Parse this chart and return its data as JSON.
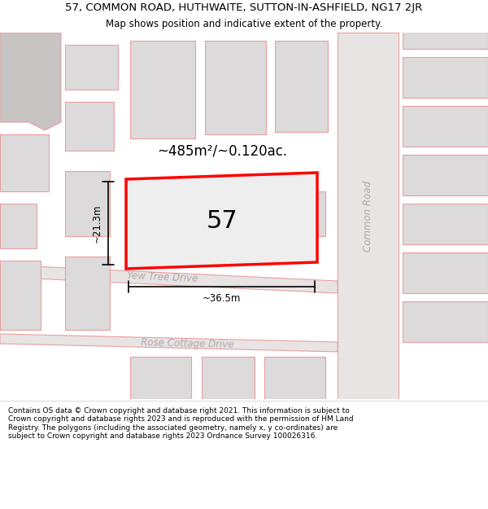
{
  "title_line1": "57, COMMON ROAD, HUTHWAITE, SUTTON-IN-ASHFIELD, NG17 2JR",
  "title_line2": "Map shows position and indicative extent of the property.",
  "footer_text": "Contains OS data © Crown copyright and database right 2021. This information is subject to Crown copyright and database rights 2023 and is reproduced with the permission of HM Land Registry. The polygons (including the associated geometry, namely x, y co-ordinates) are subject to Crown copyright and database rights 2023 Ordnance Survey 100026316.",
  "area_text": "~485m²/~0.120ac.",
  "number_label": "57",
  "dim_width": "~36.5m",
  "dim_height": "~21.3m",
  "road_label_cr": "Common Road",
  "road_label_yt": "Yew Tree Drive",
  "road_label_rc": "Rose Cottage Drive",
  "bg_color": "#f2f0f0",
  "road_fill": "#e8e4e4",
  "road_stroke": "#e8a0a0",
  "plot_fill": "#eeeeee",
  "plot_stroke": "#ff0000",
  "building_fill": "#dcdada",
  "building_stroke": "#e8a0a0",
  "dark_fill": "#c8c4c4",
  "text_dark": "#000000",
  "text_road": "#b0a8a8",
  "title_fs": 9.5,
  "subtitle_fs": 8.5,
  "footer_fs": 6.5,
  "area_fs": 12,
  "number_fs": 22,
  "dim_fs": 8.5,
  "road_fs": 8.5
}
